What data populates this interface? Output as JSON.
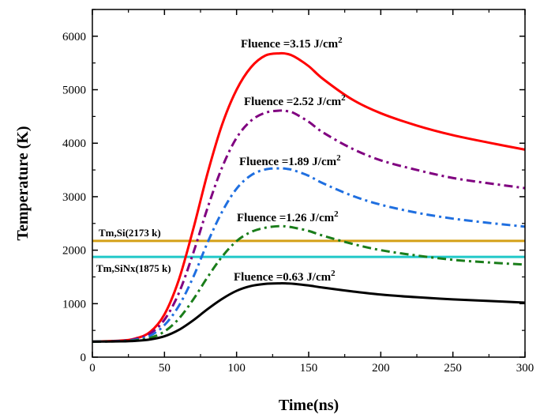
{
  "chart_data": {
    "type": "line",
    "xlabel": "Time(ns)",
    "ylabel": "Temperature (K)",
    "xlim": [
      0,
      300
    ],
    "ylim": [
      0,
      6500
    ],
    "xticks": [
      "0",
      "50",
      "100",
      "150",
      "200",
      "250",
      "300"
    ],
    "yticks": [
      "0",
      "1000",
      "2000",
      "3000",
      "4000",
      "5000",
      "6000"
    ],
    "grid": false,
    "series": [
      {
        "label_prefix": "Fluence =3.15 J/cm",
        "label_sup": "2",
        "color": "#ff0000",
        "dash": "solid",
        "x": [
          0,
          20,
          30,
          40,
          50,
          60,
          70,
          80,
          90,
          100,
          110,
          120,
          130,
          135,
          140,
          150,
          160,
          180,
          200,
          225,
          250,
          275,
          300
        ],
        "y": [
          290,
          310,
          350,
          470,
          800,
          1450,
          2400,
          3450,
          4350,
          5000,
          5420,
          5640,
          5680,
          5670,
          5620,
          5440,
          5200,
          4820,
          4560,
          4330,
          4150,
          4010,
          3880
        ]
      },
      {
        "label_prefix": "Fluence =2.52 J/cm",
        "label_sup": "2",
        "color": "#800080",
        "dash": "dashdot",
        "x": [
          0,
          20,
          30,
          40,
          50,
          60,
          70,
          80,
          90,
          100,
          110,
          120,
          130,
          135,
          140,
          150,
          160,
          180,
          200,
          225,
          250,
          275,
          300
        ],
        "y": [
          290,
          305,
          340,
          440,
          700,
          1200,
          1950,
          2800,
          3550,
          4100,
          4420,
          4570,
          4610,
          4600,
          4560,
          4400,
          4200,
          3900,
          3680,
          3500,
          3350,
          3250,
          3160
        ]
      },
      {
        "label_prefix": "Fluence =1.89 J/cm",
        "label_sup": "2",
        "color": "#1f6fe0",
        "dash": "dashdot",
        "x": [
          0,
          20,
          30,
          40,
          50,
          60,
          70,
          80,
          90,
          100,
          110,
          120,
          130,
          135,
          140,
          150,
          160,
          180,
          200,
          225,
          250,
          275,
          300
        ],
        "y": [
          290,
          300,
          325,
          400,
          600,
          960,
          1500,
          2150,
          2720,
          3150,
          3400,
          3510,
          3530,
          3520,
          3490,
          3390,
          3250,
          3020,
          2850,
          2700,
          2590,
          2510,
          2440
        ]
      },
      {
        "label_prefix": "Fluence =1.26 J/cm",
        "label_sup": "2",
        "color": "#1a7d1a",
        "dash": "dashdot",
        "x": [
          0,
          20,
          30,
          40,
          50,
          60,
          70,
          80,
          90,
          100,
          110,
          120,
          130,
          135,
          140,
          150,
          160,
          180,
          200,
          225,
          250,
          275,
          300
        ],
        "y": [
          290,
          298,
          315,
          360,
          480,
          720,
          1080,
          1500,
          1880,
          2170,
          2340,
          2420,
          2450,
          2440,
          2420,
          2360,
          2270,
          2120,
          2000,
          1900,
          1820,
          1770,
          1730
        ]
      },
      {
        "label_prefix": "Fluence =0.63 J/cm",
        "label_sup": "2",
        "color": "#000000",
        "dash": "solid",
        "x": [
          0,
          20,
          30,
          40,
          50,
          60,
          70,
          80,
          90,
          100,
          110,
          120,
          130,
          135,
          140,
          150,
          160,
          180,
          200,
          225,
          250,
          275,
          300
        ],
        "y": [
          290,
          295,
          305,
          330,
          390,
          510,
          690,
          900,
          1090,
          1240,
          1330,
          1370,
          1380,
          1378,
          1370,
          1340,
          1300,
          1230,
          1170,
          1120,
          1080,
          1050,
          1020
        ]
      }
    ],
    "hlines": [
      {
        "label": "Tm,Si(2173 k)",
        "y": 2173,
        "color": "#d4a017"
      },
      {
        "label": "Tm,SiNx(1875 k)",
        "y": 1875,
        "color": "#20c8c8"
      }
    ]
  }
}
